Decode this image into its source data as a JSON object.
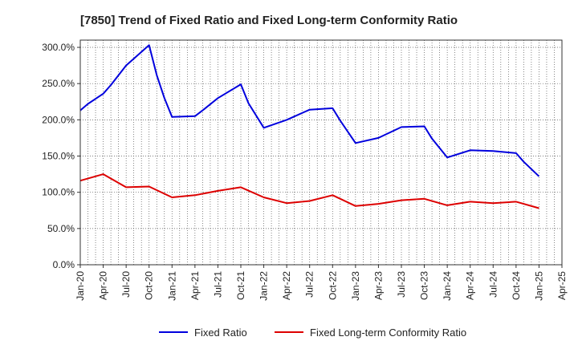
{
  "chart_data": {
    "type": "line",
    "title": "[7850]  Trend of Fixed Ratio and Fixed Long-term Conformity Ratio",
    "xlabel": "",
    "ylabel": "",
    "ylim": [
      0,
      310
    ],
    "yticks": [
      0,
      50,
      100,
      150,
      200,
      250,
      300
    ],
    "ytick_labels": [
      "0.0%",
      "50.0%",
      "100.0%",
      "150.0%",
      "200.0%",
      "250.0%",
      "300.0%"
    ],
    "xticks": [
      "Jan-20",
      "Apr-20",
      "Jul-20",
      "Oct-20",
      "Jan-21",
      "Apr-21",
      "Jul-21",
      "Oct-21",
      "Jan-22",
      "Apr-22",
      "Jul-22",
      "Oct-22",
      "Jan-23",
      "Apr-23",
      "Jul-23",
      "Oct-23",
      "Jan-24",
      "Apr-24",
      "Jul-24",
      "Oct-24",
      "Jan-25",
      "Apr-25"
    ],
    "grid": true,
    "legend_position": "bottom-center",
    "series": [
      {
        "name": "Fixed Ratio",
        "color": "#0000dd",
        "points": [
          [
            "Jan-20",
            213
          ],
          [
            "Feb-20",
            222
          ],
          [
            "Apr-20",
            236
          ],
          [
            "May-20",
            248
          ],
          [
            "Jul-20",
            275
          ],
          [
            "Oct-20",
            303
          ],
          [
            "Nov-20",
            262
          ],
          [
            "Dec-20",
            230
          ],
          [
            "Jan-21",
            204
          ],
          [
            "Apr-21",
            205
          ],
          [
            "May-21",
            213
          ],
          [
            "Jul-21",
            230
          ],
          [
            "Oct-21",
            249
          ],
          [
            "Nov-21",
            223
          ],
          [
            "Jan-22",
            189
          ],
          [
            "Apr-22",
            200
          ],
          [
            "Jul-22",
            214
          ],
          [
            "Oct-22",
            216
          ],
          [
            "Nov-22",
            199
          ],
          [
            "Jan-23",
            168
          ],
          [
            "Apr-23",
            175
          ],
          [
            "Jul-23",
            190
          ],
          [
            "Oct-23",
            191
          ],
          [
            "Nov-23",
            174
          ],
          [
            "Jan-24",
            148
          ],
          [
            "Apr-24",
            158
          ],
          [
            "Jul-24",
            157
          ],
          [
            "Oct-24",
            154
          ],
          [
            "Nov-24",
            142
          ],
          [
            "Jan-25",
            122
          ]
        ]
      },
      {
        "name": "Fixed Long-term Conformity Ratio",
        "color": "#dd0000",
        "points": [
          [
            "Jan-20",
            116
          ],
          [
            "Apr-20",
            125
          ],
          [
            "Jul-20",
            107
          ],
          [
            "Oct-20",
            108
          ],
          [
            "Jan-21",
            93
          ],
          [
            "Apr-21",
            96
          ],
          [
            "Jul-21",
            102
          ],
          [
            "Oct-21",
            107
          ],
          [
            "Jan-22",
            93
          ],
          [
            "Apr-22",
            85
          ],
          [
            "Jul-22",
            88
          ],
          [
            "Oct-22",
            96
          ],
          [
            "Jan-23",
            81
          ],
          [
            "Apr-23",
            84
          ],
          [
            "Jul-23",
            89
          ],
          [
            "Oct-23",
            91
          ],
          [
            "Jan-24",
            82
          ],
          [
            "Apr-24",
            87
          ],
          [
            "Jul-24",
            85
          ],
          [
            "Oct-24",
            87
          ],
          [
            "Jan-25",
            78
          ]
        ]
      }
    ]
  }
}
